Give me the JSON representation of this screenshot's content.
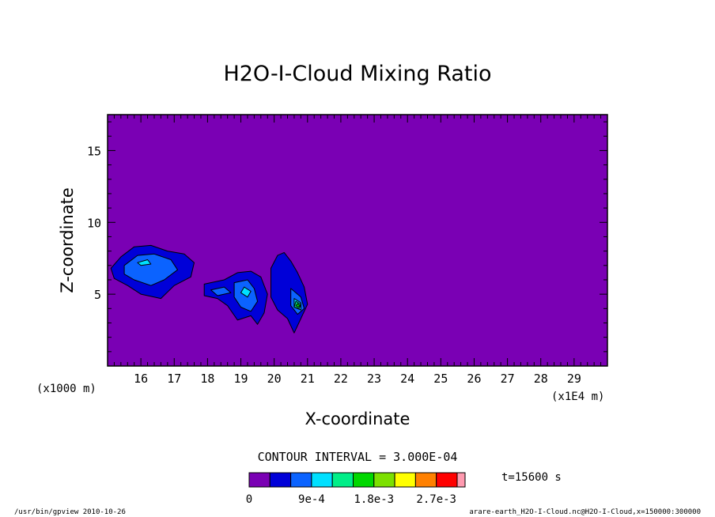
{
  "chart_data": {
    "type": "contour",
    "title": "H2O-I-Cloud Mixing Ratio",
    "xlabel": "X-coordinate",
    "ylabel": "Z-coordinate",
    "x_unit_left": "(x1000 m)",
    "x_unit_right": "(x1E4 m)",
    "x_ticks": [
      16,
      17,
      18,
      19,
      20,
      21,
      22,
      23,
      24,
      25,
      26,
      27,
      28,
      29
    ],
    "xlim": [
      15.0,
      30.0
    ],
    "y_ticks": [
      5,
      10,
      15
    ],
    "ylim": [
      0,
      17.5
    ],
    "contour_interval_text": "CONTOUR INTERVAL = 3.000E-04",
    "time_text": "t=15600 s",
    "colorbar": {
      "colors": [
        "#7a00b4",
        "#0000d8",
        "#0b63ff",
        "#00e0ff",
        "#00ee88",
        "#00d800",
        "#7ce000",
        "#ffff00",
        "#ff8000",
        "#ff0000",
        "#ff9ab0"
      ],
      "labels": [
        "0",
        "9e-4",
        "1.8e-3",
        "2.7e-3"
      ],
      "label_positions": [
        0,
        3,
        6,
        9
      ]
    },
    "background_color": "#7a00b4",
    "cloud_regions": [
      {
        "level": 1,
        "color": "#0000d8",
        "points": [
          [
            15.1,
            6.8
          ],
          [
            15.4,
            7.6
          ],
          [
            15.8,
            8.3
          ],
          [
            16.3,
            8.4
          ],
          [
            16.8,
            8.0
          ],
          [
            17.3,
            7.8
          ],
          [
            17.6,
            7.2
          ],
          [
            17.5,
            6.2
          ],
          [
            17.0,
            5.6
          ],
          [
            16.6,
            4.7
          ],
          [
            16.0,
            5.0
          ],
          [
            15.6,
            5.6
          ],
          [
            15.2,
            6.1
          ]
        ]
      },
      {
        "level": 1,
        "color": "#0000d8",
        "points": [
          [
            17.9,
            5.7
          ],
          [
            18.5,
            6.0
          ],
          [
            18.9,
            6.5
          ],
          [
            19.3,
            6.6
          ],
          [
            19.6,
            6.2
          ],
          [
            19.8,
            5.0
          ],
          [
            19.7,
            3.7
          ],
          [
            19.5,
            2.9
          ],
          [
            19.3,
            3.5
          ],
          [
            18.9,
            3.2
          ],
          [
            18.6,
            4.2
          ],
          [
            18.3,
            4.7
          ],
          [
            17.9,
            4.9
          ]
        ]
      },
      {
        "level": 1,
        "color": "#0000d8",
        "points": [
          [
            19.9,
            6.8
          ],
          [
            20.1,
            7.7
          ],
          [
            20.3,
            7.9
          ],
          [
            20.5,
            7.3
          ],
          [
            20.7,
            6.5
          ],
          [
            20.9,
            5.5
          ],
          [
            21.0,
            4.3
          ],
          [
            20.8,
            3.3
          ],
          [
            20.6,
            2.3
          ],
          [
            20.4,
            3.3
          ],
          [
            20.1,
            3.9
          ],
          [
            19.9,
            4.8
          ]
        ]
      },
      {
        "level": 2,
        "color": "#0b63ff",
        "points": [
          [
            15.5,
            7.0
          ],
          [
            15.9,
            7.7
          ],
          [
            16.4,
            7.8
          ],
          [
            16.9,
            7.4
          ],
          [
            17.1,
            6.7
          ],
          [
            16.7,
            6.0
          ],
          [
            16.3,
            5.6
          ],
          [
            15.8,
            6.0
          ],
          [
            15.5,
            6.4
          ]
        ]
      },
      {
        "level": 2,
        "color": "#0b63ff",
        "points": [
          [
            18.8,
            5.8
          ],
          [
            19.2,
            6.0
          ],
          [
            19.4,
            5.4
          ],
          [
            19.5,
            4.5
          ],
          [
            19.3,
            3.8
          ],
          [
            19.0,
            4.1
          ],
          [
            18.8,
            4.8
          ]
        ]
      },
      {
        "level": 2,
        "color": "#0b63ff",
        "points": [
          [
            20.5,
            5.4
          ],
          [
            20.8,
            4.8
          ],
          [
            20.9,
            4.0
          ],
          [
            20.7,
            3.6
          ],
          [
            20.5,
            4.2
          ]
        ]
      },
      {
        "level": 2,
        "color": "#0b63ff",
        "points": [
          [
            18.1,
            5.3
          ],
          [
            18.5,
            5.5
          ],
          [
            18.7,
            5.1
          ],
          [
            18.3,
            4.9
          ]
        ]
      },
      {
        "level": 3,
        "color": "#00e0ff",
        "points": [
          [
            15.9,
            7.2
          ],
          [
            16.2,
            7.4
          ],
          [
            16.3,
            7.1
          ],
          [
            16.0,
            7.0
          ]
        ]
      },
      {
        "level": 3,
        "color": "#00e0ff",
        "points": [
          [
            19.1,
            5.5
          ],
          [
            19.3,
            5.2
          ],
          [
            19.2,
            4.8
          ],
          [
            19.0,
            5.1
          ]
        ]
      },
      {
        "level": 3,
        "color": "#00e0ff",
        "points": [
          [
            20.6,
            4.7
          ],
          [
            20.8,
            4.4
          ],
          [
            20.8,
            3.9
          ],
          [
            20.6,
            4.1
          ]
        ]
      },
      {
        "level": 4,
        "color": "#00ee88",
        "points": [
          [
            20.65,
            4.5
          ],
          [
            20.8,
            4.3
          ],
          [
            20.75,
            4.0
          ],
          [
            20.6,
            4.1
          ]
        ]
      },
      {
        "level": 5,
        "color": "#00d800",
        "points": [
          [
            20.7,
            4.35
          ],
          [
            20.78,
            4.2
          ],
          [
            20.72,
            4.1
          ],
          [
            20.65,
            4.2
          ]
        ]
      }
    ]
  },
  "footer": {
    "left": "/usr/bin/gpview  2010-10-26",
    "right": "arare-earth_H2O-I-Cloud.nc@H2O-I-Cloud,x=150000:300000"
  }
}
